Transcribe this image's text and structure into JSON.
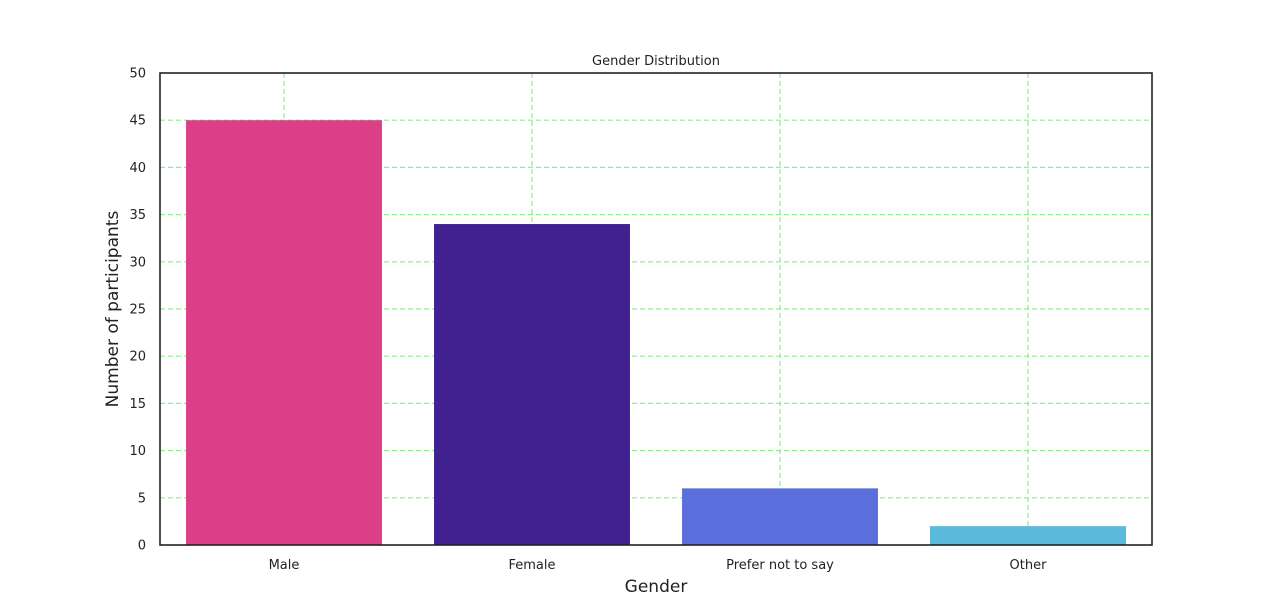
{
  "chart_data": {
    "type": "bar",
    "title": "Gender Distribution",
    "xlabel": "Gender",
    "ylabel": "Number of participants",
    "categories": [
      "Male",
      "Female",
      "Prefer not to say",
      "Other"
    ],
    "values": [
      45,
      34,
      6,
      2
    ],
    "colors": [
      "#dc3f87",
      "#41208f",
      "#5a6fdb",
      "#5bbadb"
    ],
    "ylim": [
      0,
      50
    ],
    "yticks": [
      "0",
      "5",
      "10",
      "15",
      "20",
      "25",
      "30",
      "35",
      "40",
      "45",
      "50"
    ],
    "grid": true,
    "grid_color": "#90ee90"
  }
}
